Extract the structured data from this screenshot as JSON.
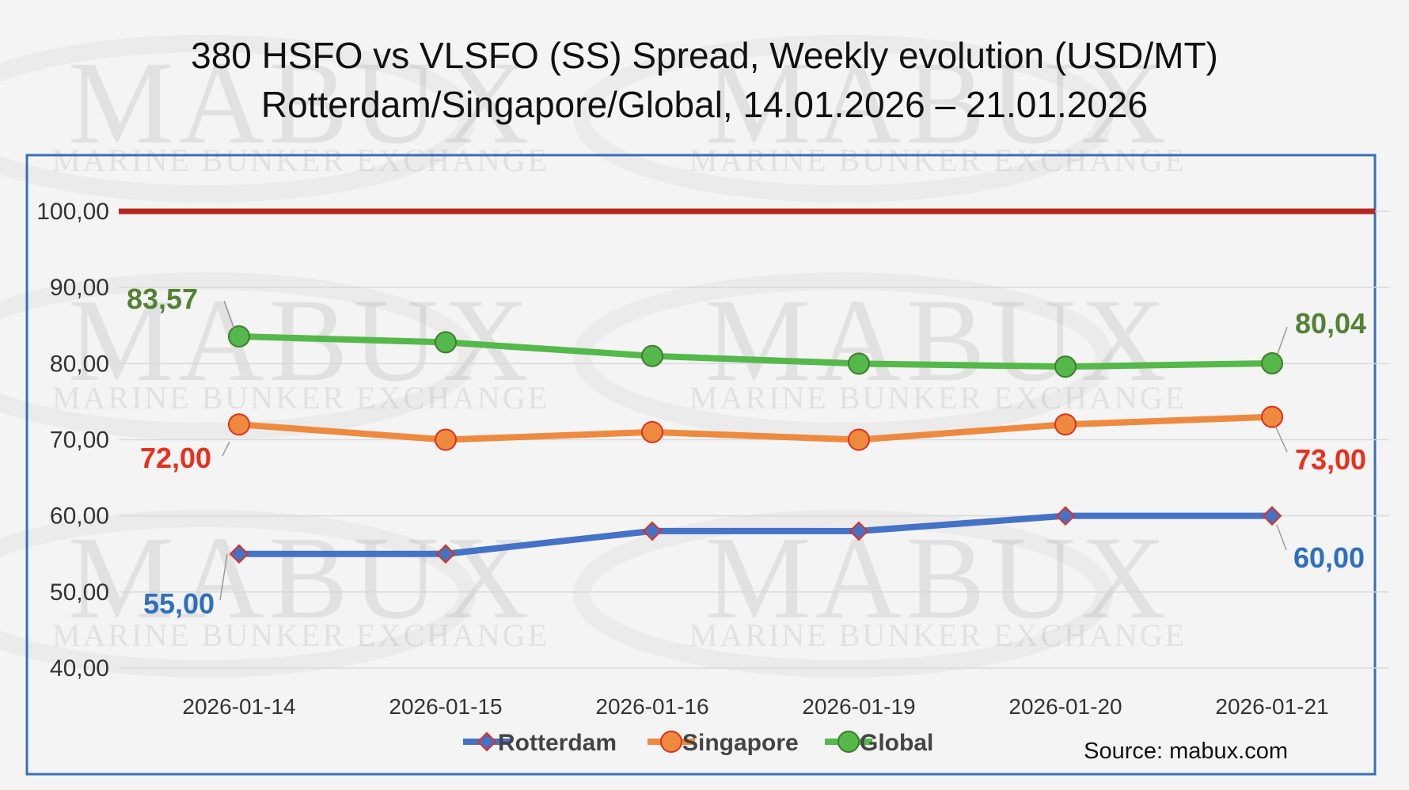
{
  "watermark": {
    "brand": "MABUX",
    "tagline": "MARINE BUNKER EXCHANGE"
  },
  "source": "Source: mabux.com",
  "chart_data": {
    "type": "line",
    "title": "380 HSFO vs VLSFO (SS) Spread, Weekly evolution (USD/MT)",
    "subtitle": "Rotterdam/Singapore/Global, 14.01.2026 – 21.01.2026",
    "xlabel": "",
    "ylabel": "",
    "categories": [
      "2026-01-14",
      "2026-01-15",
      "2026-01-16",
      "2026-01-19",
      "2026-01-20",
      "2026-01-21"
    ],
    "ylim": [
      40,
      100
    ],
    "yticks": [
      40,
      50,
      60,
      70,
      80,
      90,
      100
    ],
    "ytick_labels": [
      "40,00",
      "50,00",
      "60,00",
      "70,00",
      "80,00",
      "90,00",
      "100,00"
    ],
    "grid": true,
    "legend": "bottom",
    "reference_line": {
      "value": 100,
      "color": "#b5261e"
    },
    "series": [
      {
        "name": "Rotterdam",
        "values": [
          55,
          55,
          58,
          58,
          60,
          60
        ],
        "color": "#4472c4",
        "marker": "diamond",
        "marker_edge": "#e0301e",
        "labels": {
          "first": "55,00",
          "last": "60,00"
        },
        "label_color": "#2e6fbf"
      },
      {
        "name": "Singapore",
        "values": [
          72,
          70,
          71,
          70,
          72,
          73
        ],
        "color": "#ed8a3f",
        "marker": "circle",
        "marker_edge": "#e0301e",
        "labels": {
          "first": "72,00",
          "last": "73,00"
        },
        "label_color": "#e8301e"
      },
      {
        "name": "Global",
        "values": [
          83.57,
          82.8,
          81,
          80,
          79.6,
          80.04
        ],
        "color": "#55b84a",
        "marker": "circle",
        "marker_edge": "#3f7d2e",
        "labels": {
          "first": "83,57",
          "last": "80,04"
        },
        "label_color": "#548235"
      }
    ]
  }
}
